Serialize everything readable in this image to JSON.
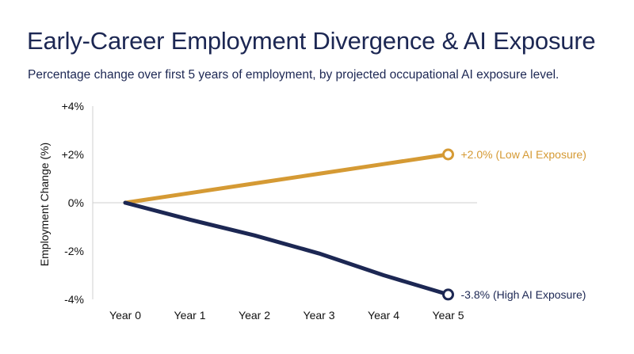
{
  "chart_data": {
    "type": "line",
    "title": "Early-Career Employment Divergence & AI Exposure",
    "subtitle": "Percentage change over first 5 years of employment, by projected occupational AI exposure level.",
    "xlabel": "",
    "ylabel": "Employment Change (%)",
    "categories": [
      "Year 0",
      "Year 1",
      "Year 2",
      "Year 3",
      "Year 4",
      "Year 5"
    ],
    "ylim": [
      -4,
      4
    ],
    "yticks": [
      {
        "value": 4,
        "label": "+4%"
      },
      {
        "value": 2,
        "label": "+2%"
      },
      {
        "value": 0,
        "label": "0%"
      },
      {
        "value": -2,
        "label": "-2%"
      },
      {
        "value": -4,
        "label": "-4%"
      }
    ],
    "grid": false,
    "series": [
      {
        "color": "#d59a34",
        "values": [
          0,
          0.4,
          0.8,
          1.2,
          1.6,
          2.0
        ],
        "end_label": "+2.0% (Low AI Exposure)"
      },
      {
        "color": "#1c2753",
        "values": [
          0,
          -0.7,
          -1.35,
          -2.1,
          -3.0,
          -3.8
        ],
        "end_label": "-3.8% (High AI Exposure)"
      }
    ]
  }
}
